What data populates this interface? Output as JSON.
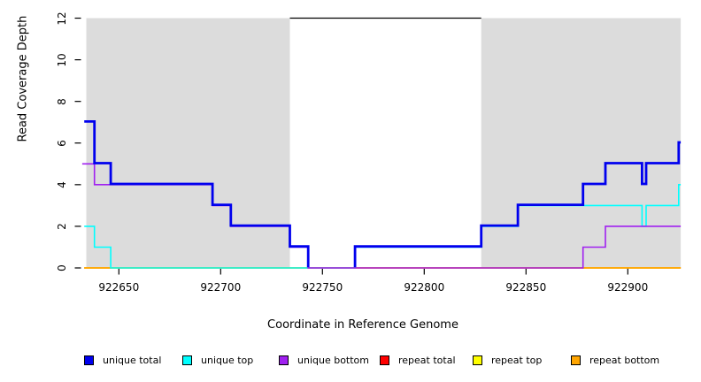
{
  "chart_data": {
    "type": "line",
    "subtype": "step-coverage-plot",
    "x_axis": {
      "title": "Coordinate in Reference Genome",
      "range": [
        922632,
        922927
      ],
      "ticks": [
        922650,
        922700,
        922750,
        922800,
        922850,
        922900
      ],
      "tick_labels": [
        "922650",
        "922700",
        "922750",
        "922800",
        "922850",
        "922900"
      ]
    },
    "y_axis": {
      "title": "Read Coverage Depth",
      "range": [
        0,
        12
      ],
      "ticks": [
        0,
        2,
        4,
        6,
        8,
        10,
        12
      ],
      "tick_labels": [
        "0",
        "2",
        "4",
        "6",
        "8",
        "10",
        "12"
      ]
    },
    "shaded_regions": [
      {
        "from": 922634,
        "to": 922734,
        "color": "#DCDCDC"
      },
      {
        "from": 922828,
        "to": 922926,
        "color": "#DCDCDC"
      }
    ],
    "top_bar": {
      "from": 922734,
      "to": 922828,
      "depth": 12,
      "color": "#000000"
    },
    "legend": [
      {
        "label": "unique total",
        "color": "#0000EE"
      },
      {
        "label": "unique top",
        "color": "#00FFFF"
      },
      {
        "label": "unique bottom",
        "color": "#A020F0"
      },
      {
        "label": "repeat total",
        "color": "#FF0000"
      },
      {
        "label": "repeat top",
        "color": "#FFFF00"
      },
      {
        "label": "repeat bottom",
        "color": "#FFA500"
      }
    ],
    "series": [
      {
        "name": "repeat total",
        "color": "#FF0000",
        "stroke_width": 1.6,
        "dy": 0,
        "paths": [
          [
            [
              922633,
              0
            ],
            [
              922926,
              0
            ]
          ]
        ]
      },
      {
        "name": "repeat top",
        "color": "#FFFF00",
        "stroke_width": 1.6,
        "dy": 0,
        "paths": [
          [
            [
              922633,
              0
            ],
            [
              922926,
              0
            ]
          ]
        ]
      },
      {
        "name": "repeat bottom",
        "color": "#FFA500",
        "stroke_width": 1.6,
        "dy": 0,
        "paths": [
          [
            [
              922633,
              0
            ],
            [
              922926,
              0
            ]
          ]
        ]
      },
      {
        "name": "unique top",
        "color": "#00FFFF",
        "stroke_width": 1.6,
        "dy": 0,
        "paths": [
          [
            [
              922633,
              2
            ],
            [
              922638,
              2
            ],
            [
              922638,
              1
            ],
            [
              922646,
              1
            ],
            [
              922646,
              0
            ],
            [
              922766,
              0
            ],
            [
              922766,
              1
            ],
            [
              922828,
              1
            ],
            [
              922828,
              2
            ],
            [
              922846,
              2
            ],
            [
              922846,
              3
            ],
            [
              922907,
              3
            ],
            [
              922907,
              2
            ],
            [
              922909,
              2
            ],
            [
              922909,
              3
            ],
            [
              922925,
              3
            ],
            [
              922925,
              4
            ],
            [
              922926,
              4
            ]
          ]
        ]
      },
      {
        "name": "unique bottom",
        "color": "#A020F0",
        "stroke_width": 1.6,
        "dy": 0,
        "paths": [
          [
            [
              922632,
              5
            ],
            [
              922638,
              5
            ],
            [
              922638,
              4
            ],
            [
              922696,
              4
            ],
            [
              922696,
              3
            ],
            [
              922705,
              3
            ],
            [
              922705,
              2
            ],
            [
              922734,
              2
            ],
            [
              922734,
              1
            ],
            [
              922743,
              1
            ],
            [
              922743,
              0
            ],
            [
              922878,
              0
            ],
            [
              922878,
              1
            ],
            [
              922889,
              1
            ],
            [
              922889,
              2
            ],
            [
              922926,
              2
            ]
          ]
        ]
      },
      {
        "name": "unique total",
        "color": "#0000EE",
        "stroke_width": 2.8,
        "dy": -0.8,
        "paths": [
          [
            [
              922633,
              7
            ],
            [
              922638,
              7
            ],
            [
              922638,
              5
            ],
            [
              922646,
              5
            ],
            [
              922646,
              4
            ],
            [
              922696,
              4
            ],
            [
              922696,
              3
            ],
            [
              922705,
              3
            ],
            [
              922705,
              2
            ],
            [
              922734,
              2
            ],
            [
              922734,
              1
            ],
            [
              922743,
              1
            ],
            [
              922743,
              0
            ]
          ],
          [
            [
              922766,
              0
            ],
            [
              922766,
              1
            ],
            [
              922828,
              1
            ],
            [
              922828,
              2
            ],
            [
              922846,
              2
            ],
            [
              922846,
              3
            ],
            [
              922878,
              3
            ],
            [
              922878,
              4
            ],
            [
              922889,
              4
            ],
            [
              922889,
              5
            ],
            [
              922907,
              5
            ],
            [
              922907,
              4
            ],
            [
              922909,
              4
            ],
            [
              922909,
              5
            ],
            [
              922925,
              5
            ],
            [
              922925,
              6
            ],
            [
              922926,
              6
            ]
          ]
        ]
      }
    ]
  }
}
